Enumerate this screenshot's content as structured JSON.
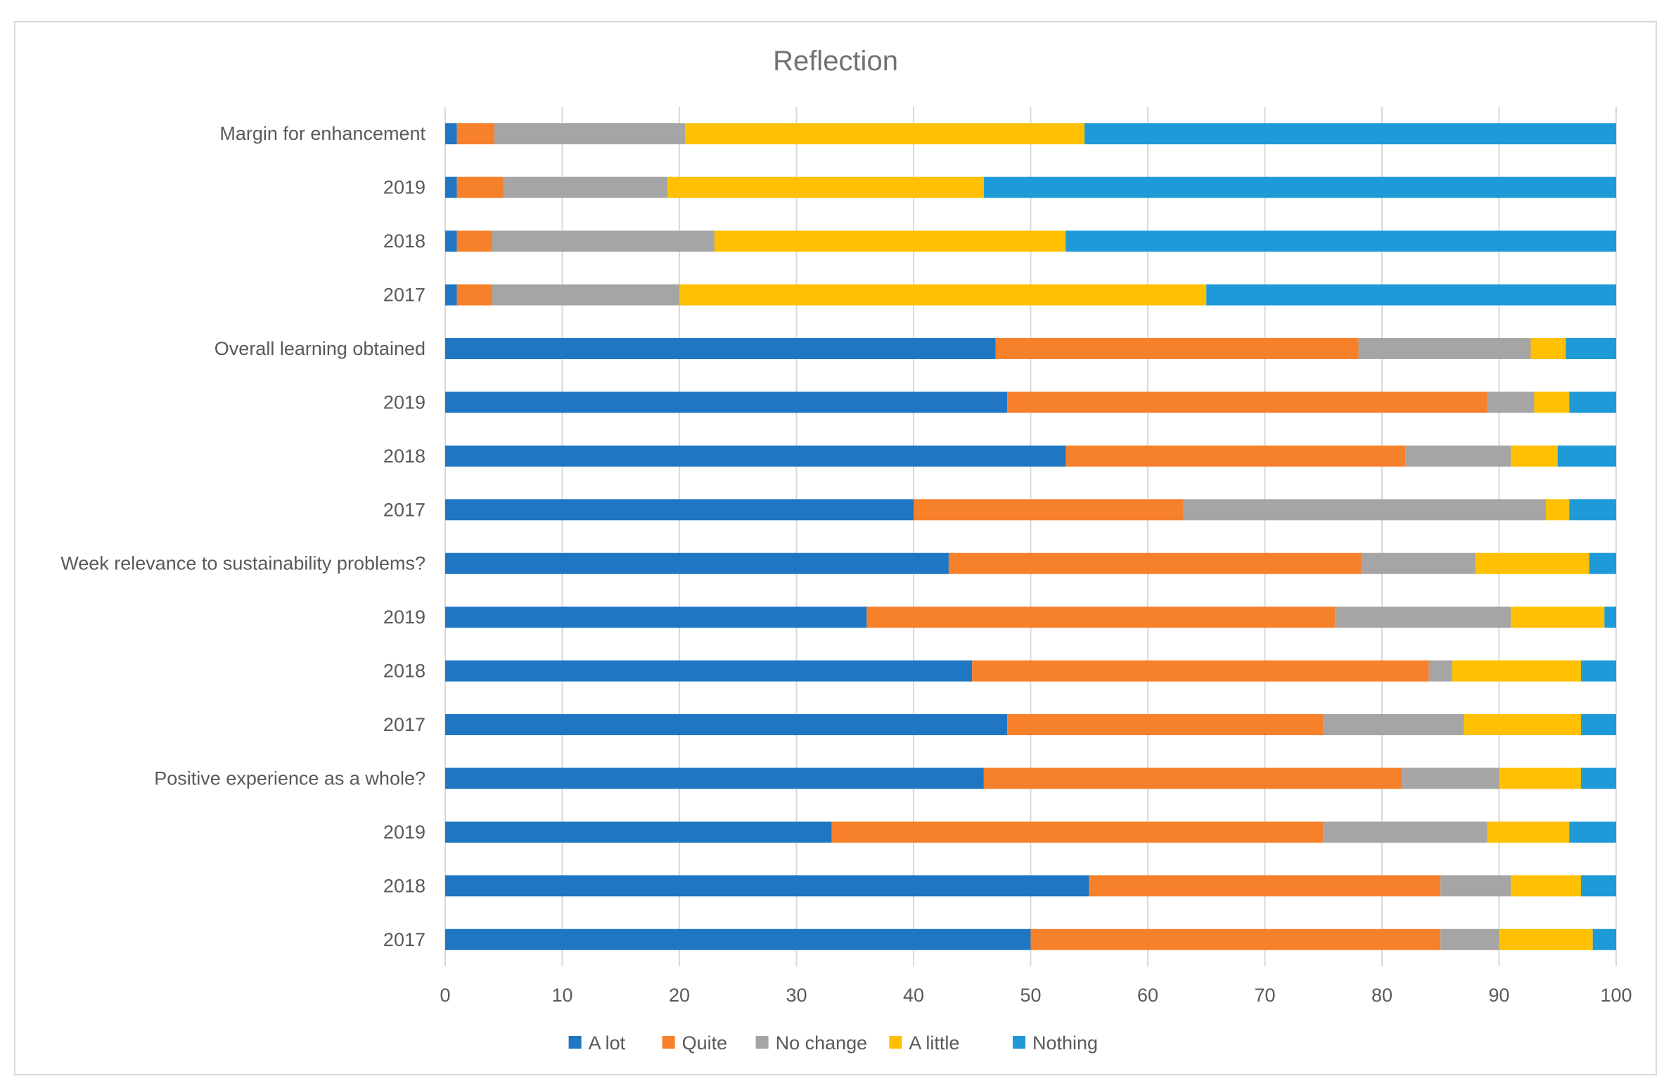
{
  "chart_data": {
    "type": "bar",
    "orientation": "horizontal",
    "stacked": true,
    "title": "Reflection",
    "xlabel": "",
    "ylabel": "",
    "xlim": [
      0,
      100
    ],
    "x_ticks": [
      "0",
      "10",
      "20",
      "30",
      "40",
      "50",
      "60",
      "70",
      "80",
      "90",
      "100"
    ],
    "grid": true,
    "legend_position": "bottom",
    "categories": [
      "Margin for enhancement",
      "2019",
      "2018",
      "2017",
      "Overall learning obtained",
      "2019",
      "2018",
      "2017",
      "Week relevance to sustainability problems?",
      "2019",
      "2018",
      "2017",
      "Positive experience as a whole?",
      "2019",
      "2018",
      "2017"
    ],
    "series": [
      {
        "name": "A lot",
        "color": "#1f77c4",
        "values": [
          1,
          1,
          1,
          1,
          47,
          48,
          53,
          40,
          43,
          36,
          45,
          48,
          46,
          33,
          55,
          50
        ]
      },
      {
        "name": "Quite",
        "color": "#f7802a",
        "values": [
          3.2,
          4,
          3,
          3,
          31,
          41,
          29,
          23,
          35.3,
          40,
          39,
          27,
          35.7,
          42,
          30,
          35
        ]
      },
      {
        "name": "No change",
        "color": "#a5a5a5",
        "values": [
          16.3,
          14,
          19,
          16,
          14.7,
          4,
          9,
          31,
          9.7,
          15,
          2,
          12,
          8.3,
          14,
          6,
          5
        ]
      },
      {
        "name": "A little",
        "color": "#fec000",
        "values": [
          34.1,
          27,
          30,
          45,
          3,
          3,
          4,
          2,
          9.7,
          8,
          11,
          10,
          7,
          7,
          6,
          8
        ]
      },
      {
        "name": "Nothing",
        "color": "#1f9ad8",
        "values": [
          45.4,
          54,
          47,
          35,
          4.3,
          4,
          5,
          4,
          2.3,
          1,
          3,
          3,
          3,
          4,
          3,
          2
        ]
      }
    ]
  }
}
